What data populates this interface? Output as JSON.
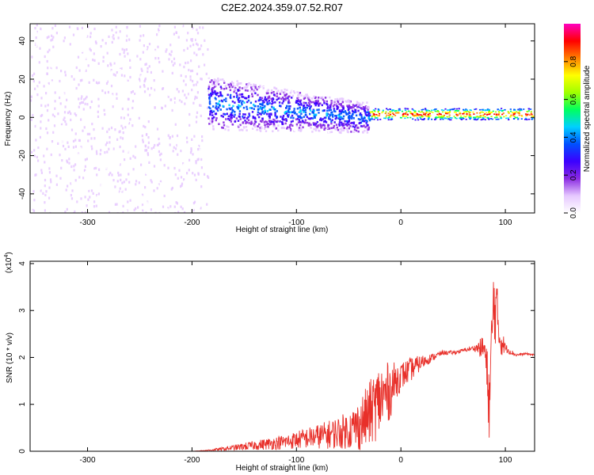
{
  "title": "C2E2.2024.359.07.52.R07",
  "chart_data": [
    {
      "type": "heatmap",
      "xlabel": "Height of straight line (km)",
      "ylabel": "Frequency (Hz)",
      "xlim": [
        -355,
        128
      ],
      "ylim": [
        -50,
        49
      ],
      "x_ticks": [
        -300,
        -200,
        -100,
        0,
        100
      ],
      "y_ticks": [
        -40,
        -20,
        0,
        20,
        40
      ],
      "colorbar": {
        "label": "Normalized spectral amplitude",
        "range": [
          0,
          1
        ],
        "ticks": [
          0.0,
          0.2,
          0.4,
          0.6,
          0.8
        ],
        "tick_labels": [
          "0.0",
          "0.2",
          "0.4",
          "0.6",
          "0.8"
        ],
        "colors": [
          "#ffffff",
          "#e6c8ff",
          "#8a2be2",
          "#3b00ff",
          "#0050ff",
          "#00d0ff",
          "#00ff60",
          "#a0ff00",
          "#ffff00",
          "#ff8000",
          "#ff0000",
          "#ff00c0"
        ]
      },
      "regions": [
        {
          "x_range": [
            -355,
            -185
          ],
          "freq_range": [
            -50,
            49
          ],
          "amplitude": 0.1,
          "pattern": "noise"
        },
        {
          "x_range": [
            -185,
            -30
          ],
          "freq_center": [
            8,
            0
          ],
          "freq_halfwidth": [
            14,
            8
          ],
          "amplitude": 0.2,
          "pattern": "blob"
        },
        {
          "x_range": [
            -30,
            128
          ],
          "freq_center": 2,
          "freq_halfwidth": 3,
          "amplitude": 0.95,
          "pattern": "band"
        }
      ]
    },
    {
      "type": "line",
      "xlabel": "Height of straight line (km)",
      "ylabel": "SNR (10 * v/v)",
      "scale_label": "(x10",
      "scale_exponent": "4",
      "scale_close": ")",
      "xlim": [
        -355,
        128
      ],
      "ylim": [
        0,
        4.05
      ],
      "x_ticks": [
        -300,
        -200,
        -100,
        0,
        100
      ],
      "y_ticks": [
        0,
        1,
        2,
        3,
        4
      ],
      "series": [
        {
          "color": "#e8302a",
          "x": [
            -355,
            -250,
            -200,
            -185,
            -170,
            -150,
            -130,
            -110,
            -90,
            -70,
            -50,
            -40,
            -30,
            -20,
            -10,
            -5,
            0,
            10,
            20,
            30,
            40,
            50,
            60,
            70,
            80,
            85,
            88,
            90,
            95,
            100,
            110,
            120,
            128
          ],
          "y": [
            0.0,
            0.0,
            0.0,
            0.02,
            0.05,
            0.1,
            0.15,
            0.2,
            0.28,
            0.35,
            0.45,
            0.55,
            0.8,
            1.1,
            1.3,
            1.5,
            1.6,
            1.75,
            1.9,
            2.0,
            2.1,
            2.1,
            2.15,
            2.2,
            2.2,
            1.0,
            2.9,
            3.2,
            2.4,
            2.2,
            2.05,
            2.08,
            2.05
          ],
          "noise": [
            0.0,
            0.0,
            0.0,
            0.01,
            0.04,
            0.08,
            0.12,
            0.16,
            0.22,
            0.3,
            0.4,
            0.55,
            0.7,
            0.8,
            0.6,
            0.4,
            0.3,
            0.25,
            0.15,
            0.08,
            0.05,
            0.04,
            0.04,
            0.05,
            0.3,
            0.9,
            1.0,
            0.9,
            0.4,
            0.1,
            0.03,
            0.02,
            0.02
          ]
        }
      ]
    }
  ]
}
